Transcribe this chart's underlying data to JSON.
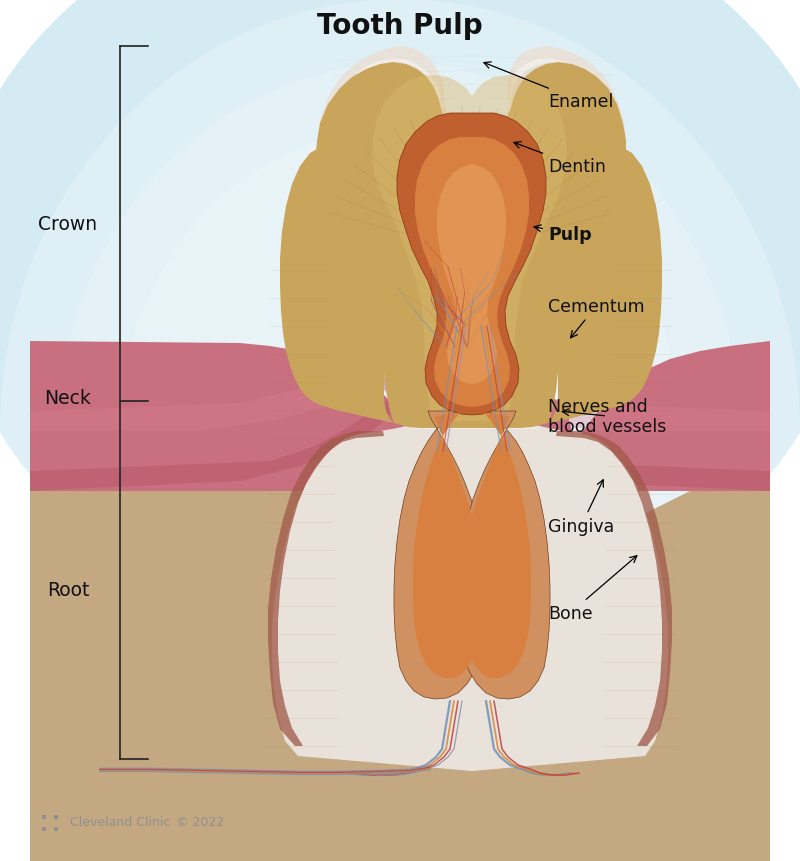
{
  "title": "Tooth Pulp",
  "title_fontsize": 20,
  "title_fontweight": "bold",
  "bg_color": "#ffffff",
  "sky_top": "#cce8f0",
  "sky_bottom": "#e8f4f8",
  "gum_color": "#c97080",
  "gum_light": "#d88090",
  "gum_dark": "#b05060",
  "gum_inner": "#d09090",
  "bone_color": "#c4a882",
  "bone_light": "#d4bca0",
  "bone_dark": "#a88860",
  "enamel_color": "#e8e2da",
  "enamel_white": "#f5f2ee",
  "enamel_mid": "#d8d0c8",
  "dentin_color": "#c8a55a",
  "dentin_light": "#d8b870",
  "dentin_dark": "#a88040",
  "pulp_outer": "#c06030",
  "pulp_inner": "#d88040",
  "pulp_light": "#e8a060",
  "pulp_canal": "#d09060",
  "cementum_color": "#a05848",
  "nerve_blue": "#7090b8",
  "nerve_red": "#b84040",
  "nerve_orange": "#d8883a",
  "nerve_gray": "#9090a8",
  "bracket_color": "#222222",
  "label_color": "#111111",
  "footer_color": "#909090",
  "clinic_text": "Cleveland Clinic",
  "copyright_text": "© 2022"
}
